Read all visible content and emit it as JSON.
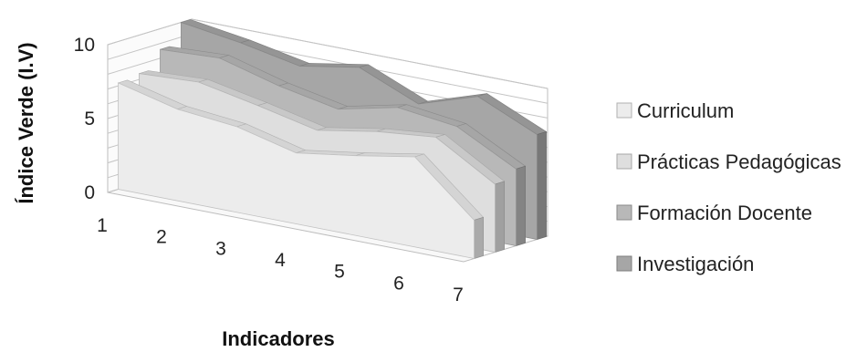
{
  "chart_data": {
    "type": "area",
    "style": "3d-area",
    "categories": [
      "1",
      "2",
      "3",
      "4",
      "5",
      "6",
      "7"
    ],
    "series": [
      {
        "name": "Curriculum",
        "values": [
          7.2,
          6.2,
          5.8,
          4.8,
          5.4,
          6.1,
          2.6
        ],
        "color": "#ececec"
      },
      {
        "name": "Prácticas Pedagógicas",
        "values": [
          7.4,
          7.6,
          6.8,
          5.9,
          6.6,
          7.0,
          4.6
        ],
        "color": "#dedede"
      },
      {
        "name": "Formación Docente",
        "values": [
          8.6,
          8.8,
          7.7,
          6.9,
          7.8,
          7.3,
          5.2
        ],
        "color": "#b8b8b8"
      },
      {
        "name": "Investigación",
        "values": [
          10.0,
          9.4,
          8.6,
          9.3,
          7.6,
          8.9,
          7.1
        ],
        "color": "#a6a6a6"
      }
    ],
    "ylabel": "Índice Verde (I.V)",
    "xlabel": "Indicadores",
    "yticks": [
      "0",
      "5",
      "10"
    ],
    "ylim": [
      0,
      10
    ],
    "grid": true,
    "legend": "right"
  }
}
